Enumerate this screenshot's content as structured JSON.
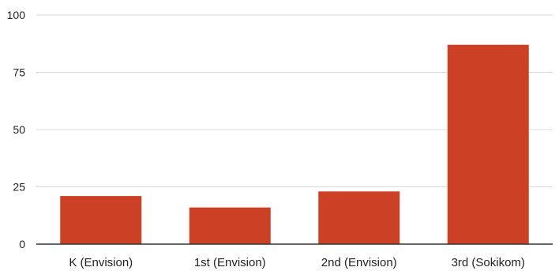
{
  "chart_data": {
    "type": "bar",
    "categories": [
      "K (Envision)",
      "1st (Envision)",
      "2nd (Envision)",
      "3rd (Sokikom)"
    ],
    "values": [
      21,
      16,
      23,
      87
    ],
    "ylim": [
      0,
      100
    ],
    "yticks": [
      0,
      25,
      50,
      75,
      100
    ],
    "grid": true,
    "bar_color": "#cc4125",
    "grid_color": "#d9d9d9",
    "axis_color": "#333333"
  }
}
